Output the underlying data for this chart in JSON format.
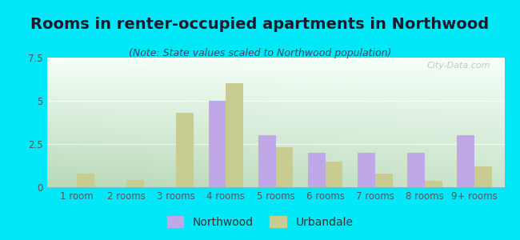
{
  "title": "Rooms in renter-occupied apartments in Northwood",
  "subtitle": "(Note: State values scaled to Northwood population)",
  "categories": [
    "1 room",
    "2 rooms",
    "3 rooms",
    "4 rooms",
    "5 rooms",
    "6 rooms",
    "7 rooms",
    "8 rooms",
    "9+ rooms"
  ],
  "northwood": [
    0,
    0,
    0,
    5.0,
    3.0,
    2.0,
    2.0,
    2.0,
    3.0
  ],
  "urbandale": [
    0.8,
    0.4,
    4.3,
    6.0,
    2.3,
    1.5,
    0.8,
    0.35,
    1.2
  ],
  "northwood_color": "#c0a8e8",
  "urbandale_color": "#c8cc90",
  "background_outer": "#00e8f8",
  "ylim": [
    0,
    7.5
  ],
  "yticks": [
    0,
    2.5,
    5,
    7.5
  ],
  "bar_width": 0.35,
  "title_fontsize": 14,
  "subtitle_fontsize": 9,
  "tick_fontsize": 8.5,
  "legend_fontsize": 10,
  "watermark": "City-Data.com"
}
